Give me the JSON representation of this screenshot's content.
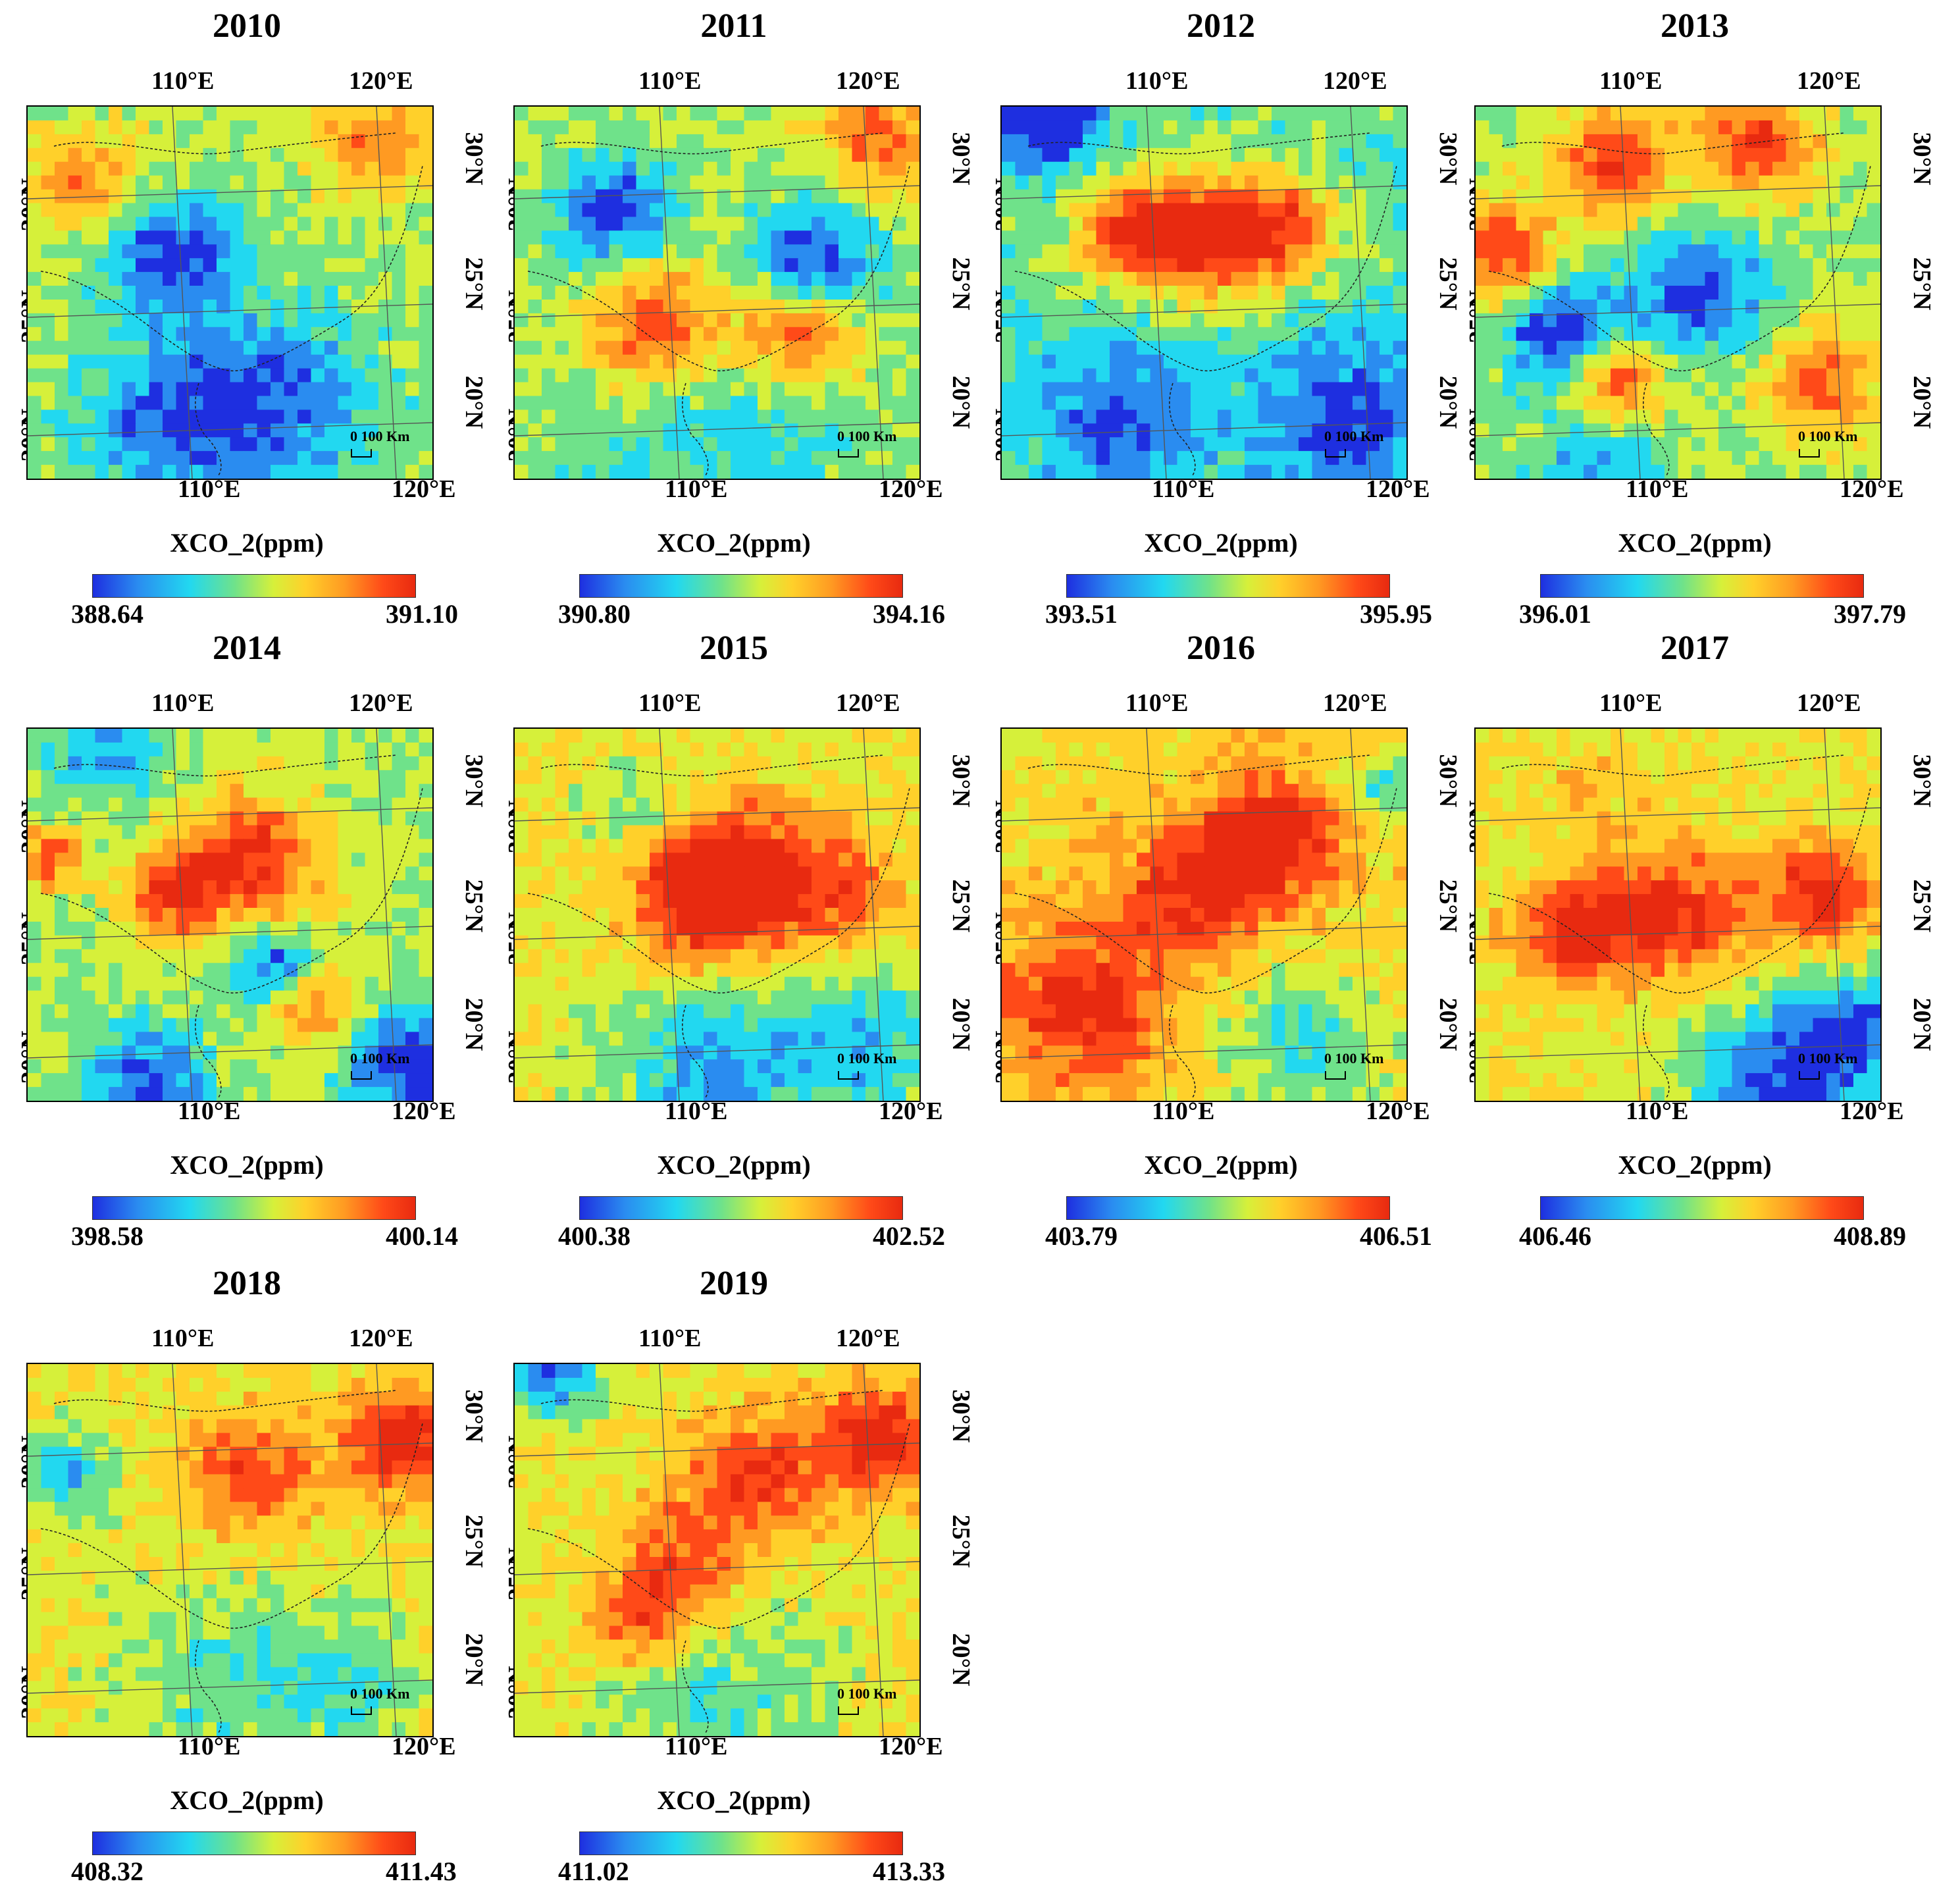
{
  "panels": [
    {
      "year": "2010",
      "title": "2010",
      "cb_title": "XCO_2(ppm)",
      "cb_min": "388.64",
      "cb_max": "391.10"
    },
    {
      "year": "2011",
      "title": "2011",
      "cb_title": "XCO_2(ppm)",
      "cb_min": "390.80",
      "cb_max": "394.16"
    },
    {
      "year": "2012",
      "title": "2012",
      "cb_title": "XCO_2(ppm)",
      "cb_min": "393.51",
      "cb_max": "395.95"
    },
    {
      "year": "2013",
      "title": "2013",
      "cb_title": "XCO_2(ppm)",
      "cb_min": "396.01",
      "cb_max": "397.79"
    },
    {
      "year": "2014",
      "title": "2014",
      "cb_title": "XCO_2(ppm)",
      "cb_min": "398.58",
      "cb_max": "400.14"
    },
    {
      "year": "2015",
      "title": "2015",
      "cb_title": "XCO_2(ppm)",
      "cb_min": "400.38",
      "cb_max": "402.52"
    },
    {
      "year": "2016",
      "title": "2016",
      "cb_title": "XCO_2(ppm)",
      "cb_min": "403.79",
      "cb_max": "406.51"
    },
    {
      "year": "2017",
      "title": "2017",
      "cb_title": "XCO_2(ppm)",
      "cb_min": "406.46",
      "cb_max": "408.89"
    },
    {
      "year": "2018",
      "title": "2018",
      "cb_title": "XCO_2(ppm)",
      "cb_min": "408.32",
      "cb_max": "411.43"
    },
    {
      "year": "2019",
      "title": "2019",
      "cb_title": "XCO_2(ppm)",
      "cb_min": "411.02",
      "cb_max": "413.33"
    }
  ],
  "ticks": {
    "lon_110": "110°E",
    "lon_120": "120°E",
    "lat_30": "30°N",
    "lat_25": "25°N",
    "lat_20": "20°N"
  },
  "scale_bar_label": "0 100 Km",
  "colormap": [
    "#1e2fe0",
    "#2a8cf0",
    "#22d8f0",
    "#6fe28a",
    "#d6f03a",
    "#ffd02a",
    "#ff9a22",
    "#ff4a18",
    "#e82a10"
  ]
}
